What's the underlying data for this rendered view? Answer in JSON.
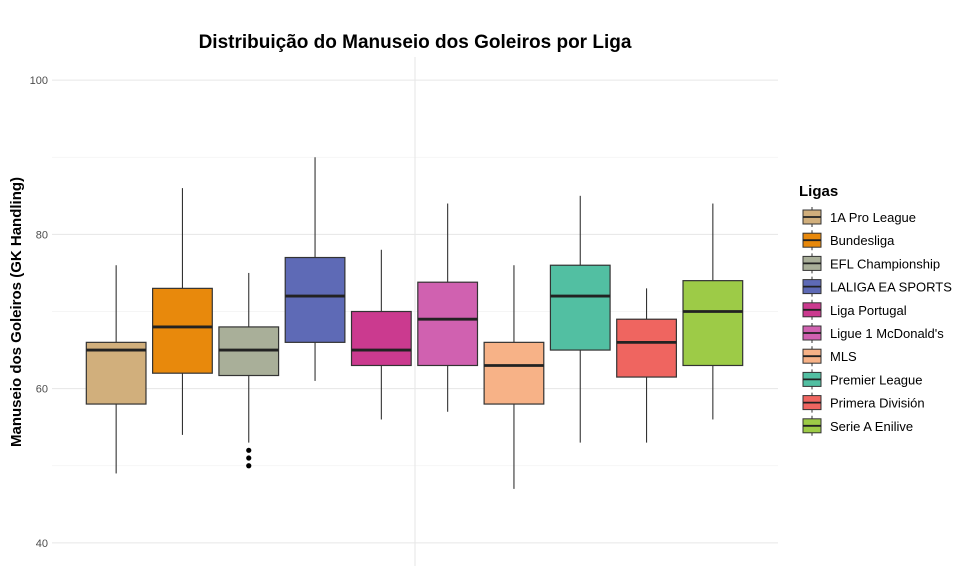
{
  "chart_data": {
    "type": "box",
    "title": "Distribuição do Manuseio dos Goleiros por Liga",
    "xlabel": "",
    "ylabel": "Manuseio dos Goleiros (GK Handling)",
    "ylim": [
      37,
      103
    ],
    "yticks": [
      40,
      60,
      80,
      100
    ],
    "grid": true,
    "legend": {
      "title": "Ligas",
      "position": "right"
    },
    "series": [
      {
        "name": "1A Pro League",
        "color": "#D1AF7C",
        "min": 49,
        "q1": 58,
        "median": 65,
        "q3": 66,
        "max": 76,
        "outliers": []
      },
      {
        "name": "Bundesliga",
        "color": "#E8890C",
        "min": 54,
        "q1": 62,
        "median": 68,
        "q3": 73,
        "max": 86,
        "outliers": []
      },
      {
        "name": "EFL Championship",
        "color": "#A9AF99",
        "min": 53,
        "q1": 61.7,
        "median": 65,
        "q3": 68,
        "max": 75,
        "outliers": [
          50,
          51,
          52
        ]
      },
      {
        "name": "LALIGA EA SPORTS",
        "color": "#5E6AB6",
        "min": 61,
        "q1": 66,
        "median": 72,
        "q3": 77,
        "max": 90,
        "outliers": []
      },
      {
        "name": "Liga Portugal",
        "color": "#CB3A8F",
        "min": 56,
        "q1": 63,
        "median": 65,
        "q3": 70,
        "max": 78,
        "outliers": []
      },
      {
        "name": "Ligue 1 McDonald's",
        "color": "#D061B0",
        "min": 57,
        "q1": 63,
        "median": 69,
        "q3": 73.8,
        "max": 84,
        "outliers": []
      },
      {
        "name": "MLS",
        "color": "#F7B287",
        "min": 47,
        "q1": 58,
        "median": 63,
        "q3": 66,
        "max": 76,
        "outliers": []
      },
      {
        "name": "Premier League",
        "color": "#52BFA2",
        "min": 53,
        "q1": 65,
        "median": 72,
        "q3": 76,
        "max": 85,
        "outliers": []
      },
      {
        "name": "Primera División",
        "color": "#EF6560",
        "min": 53,
        "q1": 61.5,
        "median": 66,
        "q3": 69,
        "max": 73,
        "outliers": []
      },
      {
        "name": "Serie A Enilive",
        "color": "#9DCB47",
        "min": 56,
        "q1": 63,
        "median": 70,
        "q3": 74,
        "max": 84,
        "outliers": []
      }
    ]
  }
}
